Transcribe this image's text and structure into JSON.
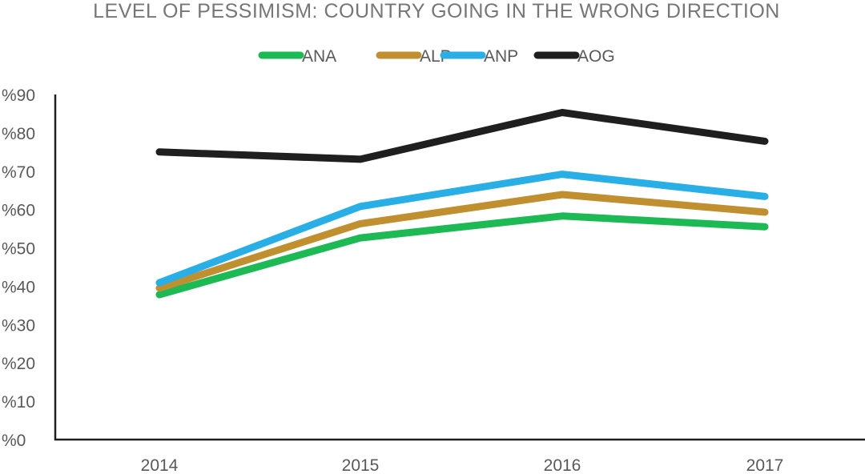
{
  "chart_data": {
    "type": "line",
    "title": "LEVEL OF PESSIMISM: COUNTRY GOING IN THE WRONG DIRECTION",
    "xlabel": "",
    "ylabel": "",
    "categories": [
      "2014",
      "2015",
      "2016",
      "2017"
    ],
    "ylim": [
      0,
      90
    ],
    "yticks": [
      0,
      10,
      20,
      30,
      40,
      50,
      60,
      70,
      80,
      90
    ],
    "ytick_labels": [
      "%0",
      "%10",
      "%20",
      "%30",
      "%40",
      "%50",
      "%60",
      "%70",
      "%80",
      "%90"
    ],
    "grid": false,
    "legend_position": "top",
    "series": [
      {
        "name": "ANA",
        "color": "#1db954",
        "values": [
          37.8,
          52.6,
          58.3,
          55.5
        ]
      },
      {
        "name": "ALP",
        "color": "#c09030",
        "values": [
          39.5,
          56.3,
          63.9,
          59.3
        ]
      },
      {
        "name": "ANP",
        "color": "#29aee6",
        "values": [
          40.9,
          60.8,
          69.2,
          63.4
        ]
      },
      {
        "name": "AOG",
        "color": "#1f1f1f",
        "values": [
          75.0,
          73.1,
          85.3,
          77.8
        ]
      }
    ]
  }
}
